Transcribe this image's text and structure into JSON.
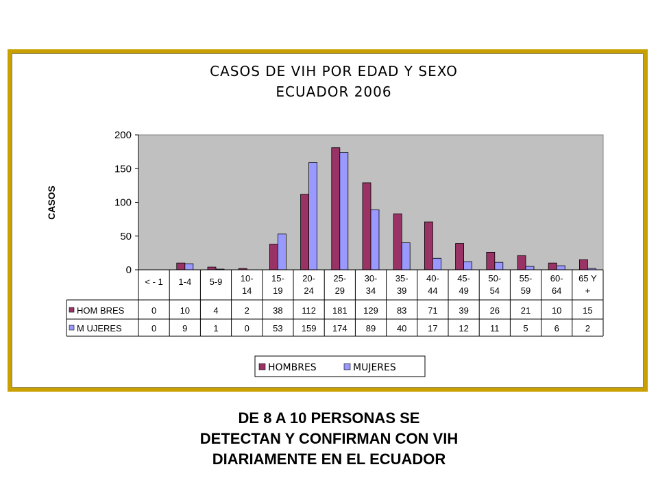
{
  "chart_data": {
    "type": "bar",
    "title_lines": [
      "CASOS DE VIH  POR EDAD Y SEXO",
      "ECUADOR 2006"
    ],
    "ylabel": "CASOS",
    "xlabel": "",
    "ylim": [
      0,
      200
    ],
    "yticks": [
      0,
      50,
      100,
      150,
      200
    ],
    "categories": [
      [
        "< - 1"
      ],
      [
        "1-4"
      ],
      [
        "5-9"
      ],
      [
        "10-",
        "14"
      ],
      [
        "15-",
        "19"
      ],
      [
        "20-",
        "24"
      ],
      [
        "25-",
        "29"
      ],
      [
        "30-",
        "34"
      ],
      [
        "35-",
        "39"
      ],
      [
        "40-",
        "44"
      ],
      [
        "45-",
        "49"
      ],
      [
        "50-",
        "54"
      ],
      [
        "55-",
        "59"
      ],
      [
        "60-",
        "64"
      ],
      [
        "65 Y",
        "+"
      ]
    ],
    "series": [
      {
        "name": "HOMBRES",
        "table_label": "HOM BRES",
        "color": "#993366",
        "values": [
          0,
          10,
          4,
          2,
          38,
          112,
          181,
          129,
          83,
          71,
          39,
          26,
          21,
          10,
          15
        ]
      },
      {
        "name": "MUJERES",
        "table_label": "M UJERES",
        "color": "#9999ff",
        "values": [
          0,
          9,
          1,
          0,
          53,
          159,
          174,
          89,
          40,
          17,
          12,
          11,
          5,
          6,
          2
        ]
      }
    ],
    "grid": false,
    "legend_position": "bottom-center",
    "plot_background": "#c0c0c0",
    "data_table": true
  },
  "frame_color": "#c8a000",
  "caption_lines": [
    "DE 8 A 10 PERSONAS SE",
    "DETECTAN Y CONFIRMAN CON VIH",
    "DIARIAMENTE  EN EL ECUADOR"
  ]
}
